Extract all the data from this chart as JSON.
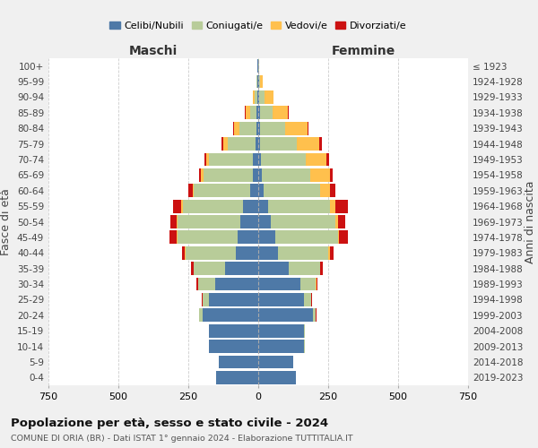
{
  "age_groups": [
    "0-4",
    "5-9",
    "10-14",
    "15-19",
    "20-24",
    "25-29",
    "30-34",
    "35-39",
    "40-44",
    "45-49",
    "50-54",
    "55-59",
    "60-64",
    "65-69",
    "70-74",
    "75-79",
    "80-84",
    "85-89",
    "90-94",
    "95-99",
    "100+"
  ],
  "birth_years": [
    "2019-2023",
    "2014-2018",
    "2009-2013",
    "2004-2008",
    "1999-2003",
    "1994-1998",
    "1989-1993",
    "1984-1988",
    "1979-1983",
    "1974-1978",
    "1969-1973",
    "1964-1968",
    "1959-1963",
    "1954-1958",
    "1949-1953",
    "1944-1948",
    "1939-1943",
    "1934-1938",
    "1929-1933",
    "1924-1928",
    "≤ 1923"
  ],
  "male": {
    "celibi": [
      150,
      140,
      175,
      175,
      200,
      175,
      155,
      120,
      80,
      75,
      65,
      55,
      30,
      20,
      20,
      10,
      8,
      5,
      4,
      2,
      2
    ],
    "coniugati": [
      0,
      0,
      2,
      2,
      10,
      25,
      60,
      110,
      180,
      215,
      225,
      215,
      200,
      175,
      155,
      100,
      60,
      25,
      10,
      3,
      1
    ],
    "vedovi": [
      0,
      0,
      0,
      0,
      0,
      0,
      1,
      1,
      2,
      2,
      3,
      5,
      5,
      10,
      10,
      15,
      20,
      15,
      5,
      0,
      0
    ],
    "divorziati": [
      0,
      0,
      0,
      0,
      2,
      2,
      5,
      8,
      12,
      25,
      20,
      30,
      15,
      8,
      8,
      5,
      3,
      2,
      0,
      0,
      0
    ]
  },
  "female": {
    "nubili": [
      135,
      125,
      165,
      165,
      195,
      165,
      150,
      110,
      70,
      60,
      45,
      35,
      20,
      12,
      10,
      8,
      5,
      5,
      3,
      2,
      1
    ],
    "coniugate": [
      0,
      0,
      2,
      2,
      10,
      25,
      55,
      110,
      180,
      225,
      230,
      220,
      200,
      175,
      160,
      130,
      90,
      45,
      20,
      5,
      1
    ],
    "vedove": [
      0,
      0,
      0,
      0,
      0,
      0,
      2,
      2,
      5,
      5,
      10,
      20,
      35,
      70,
      75,
      80,
      80,
      55,
      30,
      8,
      1
    ],
    "divorziate": [
      0,
      0,
      0,
      0,
      2,
      2,
      5,
      8,
      15,
      30,
      25,
      45,
      20,
      10,
      8,
      8,
      5,
      3,
      2,
      0,
      0
    ]
  },
  "colors": {
    "celibi_nubili": "#4e79a7",
    "coniugati": "#b8cc99",
    "vedovi": "#ffc04d",
    "divorziati": "#cc1111"
  },
  "xlim": 750,
  "title": "Popolazione per età, sesso e stato civile - 2024",
  "subtitle": "COMUNE DI ORIA (BR) - Dati ISTAT 1° gennaio 2024 - Elaborazione TUTTITALIA.IT",
  "ylabel_left": "Fasce di età",
  "ylabel_right": "Anni di nascita",
  "xlabel_left": "Maschi",
  "xlabel_right": "Femmine",
  "legend_labels": [
    "Celibi/Nubili",
    "Coniugati/e",
    "Vedovi/e",
    "Divorziati/e"
  ],
  "bg_color": "#f0f0f0",
  "plot_bg_color": "#ffffff"
}
